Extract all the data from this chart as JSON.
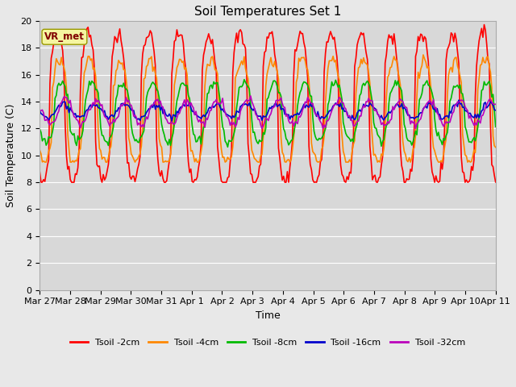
{
  "title": "Soil Temperatures Set 1",
  "xlabel": "Time",
  "ylabel": "Soil Temperature (C)",
  "ylim": [
    0,
    20
  ],
  "yticks": [
    0,
    2,
    4,
    6,
    8,
    10,
    12,
    14,
    16,
    18,
    20
  ],
  "fig_bg": "#e8e8e8",
  "plot_bg": "#d8d8d8",
  "annotation_text": "VR_met",
  "annotation_bg": "#f5f5a0",
  "annotation_fg": "#800000",
  "colors": {
    "t2": "#ff0000",
    "t4": "#ff8800",
    "t8": "#00bb00",
    "t16": "#0000cc",
    "t32": "#bb00bb"
  },
  "lw": 1.2,
  "xtick_labels": [
    "Mar 27",
    "Mar 28",
    "Mar 29",
    "Mar 30",
    "Mar 31",
    "Apr 1",
    "Apr 2",
    "Apr 3",
    "Apr 4",
    "Apr 5",
    "Apr 6",
    "Apr 7",
    "Apr 8",
    "Apr 9",
    "Apr 10",
    "Apr 11"
  ],
  "n_days": 15,
  "pts_per_day": 24,
  "legend_labels": [
    "Tsoil -2cm",
    "Tsoil -4cm",
    "Tsoil -8cm",
    "Tsoil -16cm",
    "Tsoil -32cm"
  ]
}
